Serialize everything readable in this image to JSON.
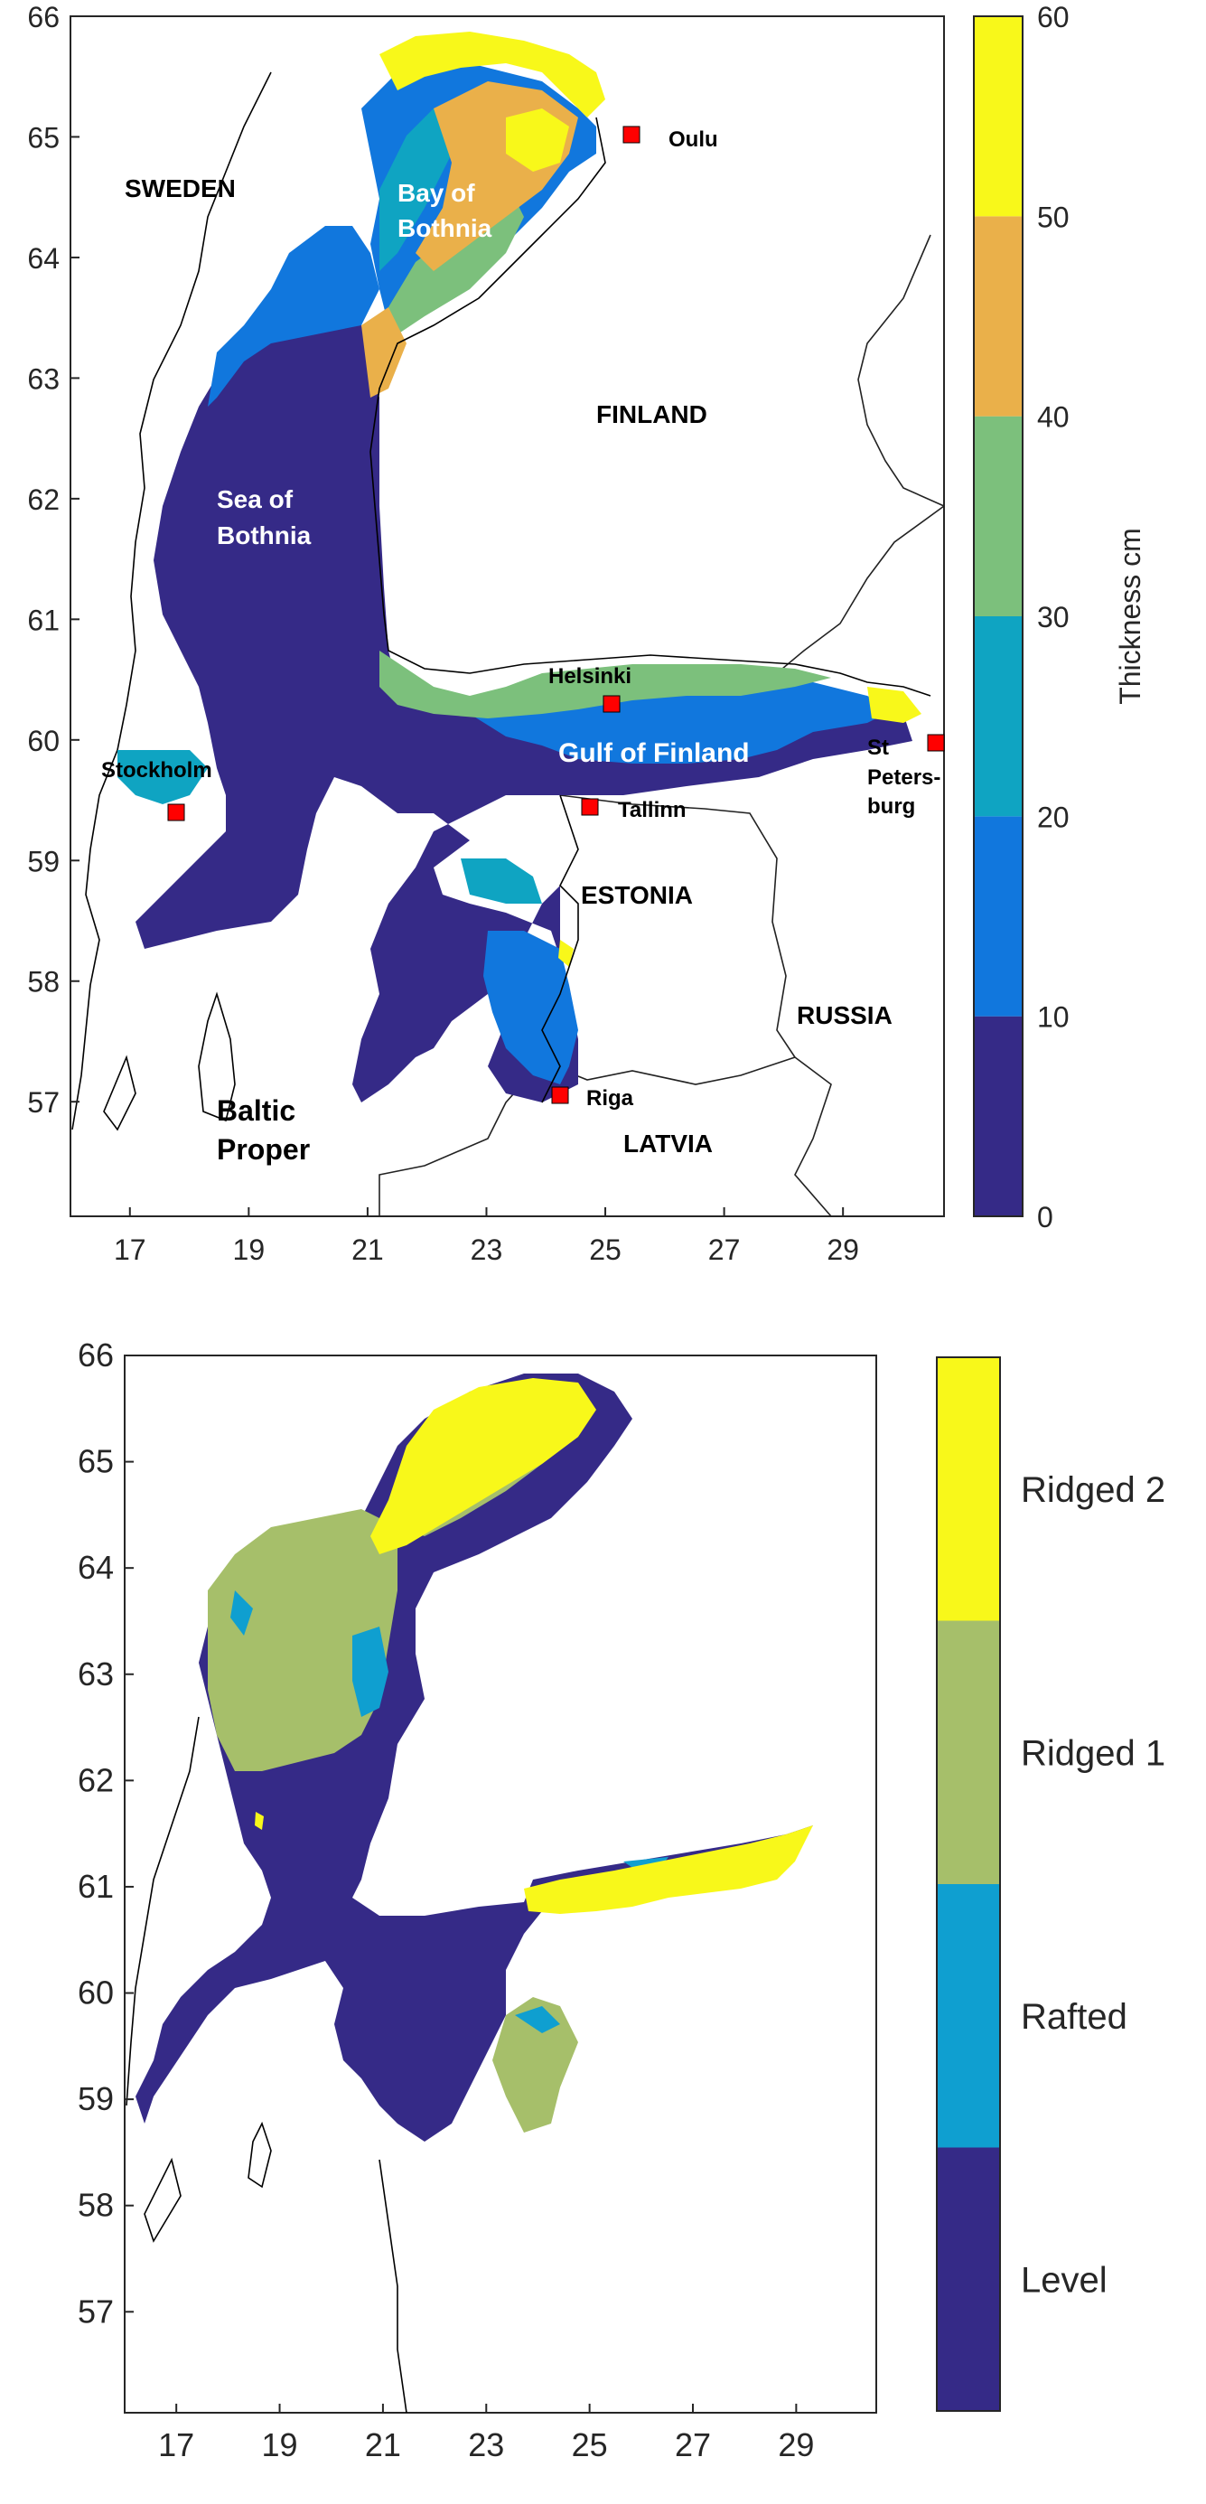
{
  "map_top": {
    "x_ticks": [
      "17",
      "19",
      "21",
      "23",
      "25",
      "27",
      "29"
    ],
    "y_ticks": [
      "57",
      "58",
      "59",
      "60",
      "61",
      "62",
      "63",
      "64",
      "65",
      "66"
    ],
    "colorbar": {
      "label": "Thickness cm",
      "ticks": [
        "0",
        "10",
        "20",
        "30",
        "40",
        "50",
        "60"
      ],
      "colors": [
        "#352a87",
        "#1177dd",
        "#0fa4c2",
        "#7cc07c",
        "#eab04a",
        "#f8f81a"
      ]
    },
    "countries": {
      "sweden": "SWEDEN",
      "finland": "FINLAND",
      "estonia": "ESTONIA",
      "russia": "RUSSIA",
      "latvia": "LATVIA"
    },
    "seas": {
      "bay1": "Bay of",
      "bay2": "Bothnia",
      "sea1": "Sea of",
      "sea2": "Bothnia",
      "gulf": "Gulf of Finland",
      "baltic1": "Baltic",
      "baltic2": "Proper"
    },
    "cities": {
      "oulu": "Oulu",
      "helsinki": "Helsinki",
      "stockholm": "Stockholm",
      "tallinn": "Tallinn",
      "riga": "Riga",
      "stp1": "St",
      "stp2": "Peters-",
      "stp3": "burg"
    }
  },
  "map_bottom": {
    "x_ticks": [
      "17",
      "19",
      "21",
      "23",
      "25",
      "27",
      "29"
    ],
    "y_ticks": [
      "57",
      "58",
      "59",
      "60",
      "61",
      "62",
      "63",
      "64",
      "65",
      "66"
    ],
    "colorbar": {
      "categories": [
        "Level",
        "Rafted",
        "Ridged 1",
        "Ridged 2"
      ],
      "colors": [
        "#352a87",
        "#0f9fd0",
        "#a6bf6a",
        "#f8f81a"
      ]
    }
  }
}
